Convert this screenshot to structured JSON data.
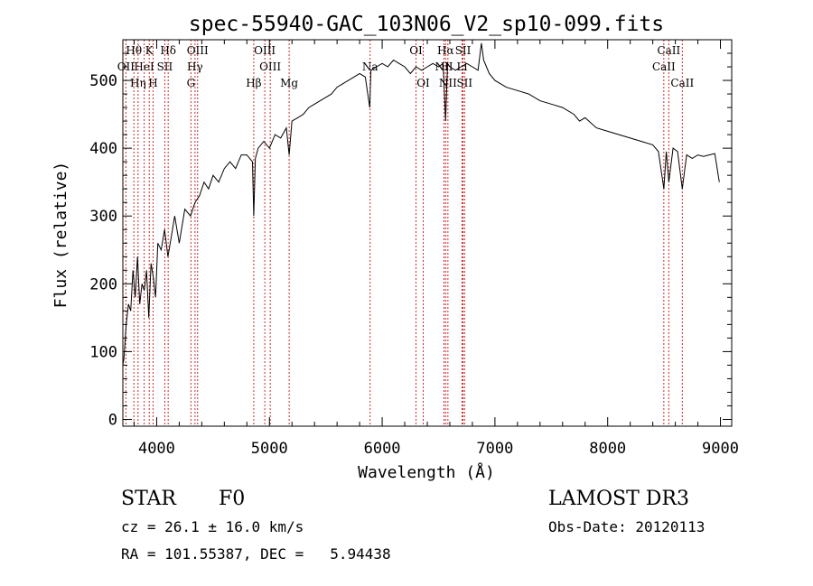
{
  "chart_data": {
    "type": "line",
    "title": "spec-55940-GAC_103N06_V2_sp10-099.fits",
    "xlabel": "Wavelength (Å)",
    "ylabel": "Flux (relative)",
    "xlim": [
      3700,
      9100
    ],
    "ylim": [
      -10,
      560
    ],
    "xticks": [
      4000,
      5000,
      6000,
      7000,
      8000,
      9000
    ],
    "yticks": [
      0,
      100,
      200,
      300,
      400,
      500
    ],
    "x_tick_labels": [
      "4000",
      "5000",
      "6000",
      "7000",
      "8000",
      "9000"
    ],
    "y_tick_labels": [
      "0",
      "100",
      "200",
      "300",
      "400",
      "500"
    ],
    "series": [
      {
        "name": "spectrum",
        "x": [
          3700,
          3710,
          3730,
          3750,
          3770,
          3790,
          3810,
          3830,
          3850,
          3870,
          3890,
          3910,
          3930,
          3950,
          3970,
          3990,
          4010,
          4040,
          4070,
          4100,
          4130,
          4160,
          4200,
          4250,
          4300,
          4340,
          4380,
          4420,
          4460,
          4500,
          4550,
          4600,
          4650,
          4700,
          4750,
          4800,
          4850,
          4861,
          4875,
          4900,
          4950,
          5000,
          5050,
          5100,
          5150,
          5175,
          5200,
          5250,
          5300,
          5350,
          5400,
          5450,
          5500,
          5550,
          5600,
          5650,
          5700,
          5750,
          5800,
          5850,
          5890,
          5900,
          5950,
          6000,
          6050,
          6100,
          6150,
          6200,
          6250,
          6300,
          6350,
          6400,
          6450,
          6500,
          6540,
          6563,
          6580,
          6600,
          6650,
          6700,
          6750,
          6800,
          6850,
          6880,
          6900,
          6950,
          7000,
          7100,
          7200,
          7300,
          7400,
          7500,
          7600,
          7700,
          7750,
          7800,
          7900,
          8000,
          8100,
          8200,
          8300,
          8400,
          8450,
          8498,
          8520,
          8542,
          8580,
          8620,
          8662,
          8700,
          8750,
          8800,
          8850,
          8900,
          8950,
          8990
        ],
        "y": [
          80,
          90,
          140,
          170,
          160,
          220,
          180,
          240,
          170,
          200,
          190,
          220,
          150,
          230,
          210,
          180,
          260,
          250,
          280,
          240,
          270,
          300,
          260,
          310,
          300,
          320,
          330,
          350,
          340,
          360,
          350,
          370,
          380,
          370,
          390,
          390,
          380,
          300,
          385,
          400,
          410,
          400,
          420,
          415,
          430,
          390,
          440,
          445,
          450,
          460,
          465,
          470,
          475,
          480,
          490,
          495,
          500,
          505,
          510,
          505,
          460,
          515,
          520,
          525,
          520,
          530,
          525,
          520,
          510,
          520,
          515,
          520,
          525,
          520,
          525,
          440,
          525,
          520,
          515,
          520,
          525,
          520,
          515,
          555,
          530,
          510,
          500,
          490,
          485,
          480,
          470,
          465,
          460,
          450,
          440,
          445,
          430,
          425,
          420,
          415,
          410,
          405,
          395,
          340,
          395,
          350,
          400,
          395,
          340,
          390,
          385,
          390,
          388,
          390,
          392,
          350
        ]
      }
    ],
    "line_labels": [
      {
        "name": "Hθ",
        "x": 3798,
        "row": 0
      },
      {
        "name": "K",
        "x": 3934,
        "row": 0
      },
      {
        "name": "Hδ",
        "x": 4102,
        "row": 0
      },
      {
        "name": "OIII",
        "x": 4363,
        "row": 0
      },
      {
        "name": "OIII",
        "x": 4959,
        "row": 0
      },
      {
        "name": "OI",
        "x": 6300,
        "row": 0
      },
      {
        "name": "Hα",
        "x": 6563,
        "row": 0
      },
      {
        "name": "SII",
        "x": 6717,
        "row": 0
      },
      {
        "name": "CaII",
        "x": 8542,
        "row": 0
      },
      {
        "name": "OII",
        "x": 3727,
        "row": 1
      },
      {
        "name": "HeI",
        "x": 3889,
        "row": 1
      },
      {
        "name": "SII",
        "x": 4072,
        "row": 1
      },
      {
        "name": "Hγ",
        "x": 4340,
        "row": 1
      },
      {
        "name": "OIII",
        "x": 5007,
        "row": 1
      },
      {
        "name": "Na",
        "x": 5893,
        "row": 1
      },
      {
        "name": "NII",
        "x": 6548,
        "row": 1
      },
      {
        "name": "Li",
        "x": 6708,
        "row": 1
      },
      {
        "name": "CaII",
        "x": 8498,
        "row": 1
      },
      {
        "name": "Hη",
        "x": 3835,
        "row": 2
      },
      {
        "name": "H",
        "x": 3968,
        "row": 2
      },
      {
        "name": "G",
        "x": 4304,
        "row": 2
      },
      {
        "name": "Hβ",
        "x": 4861,
        "row": 2
      },
      {
        "name": "Mg",
        "x": 5175,
        "row": 2
      },
      {
        "name": "OI",
        "x": 6364,
        "row": 2
      },
      {
        "name": "NII",
        "x": 6583,
        "row": 2
      },
      {
        "name": "SII",
        "x": 6731,
        "row": 2
      },
      {
        "name": "CaII",
        "x": 8662,
        "row": 2
      }
    ],
    "marker_color": "#cc2a2a"
  },
  "footer": {
    "object_class": "STAR",
    "subclass": "F0",
    "survey": "LAMOST DR3",
    "cz": "cz = 26.1 ± 16.0 km/s",
    "obs_date": "Obs-Date: 20120113",
    "coords": "RA = 101.55387, DEC =   5.94438"
  }
}
